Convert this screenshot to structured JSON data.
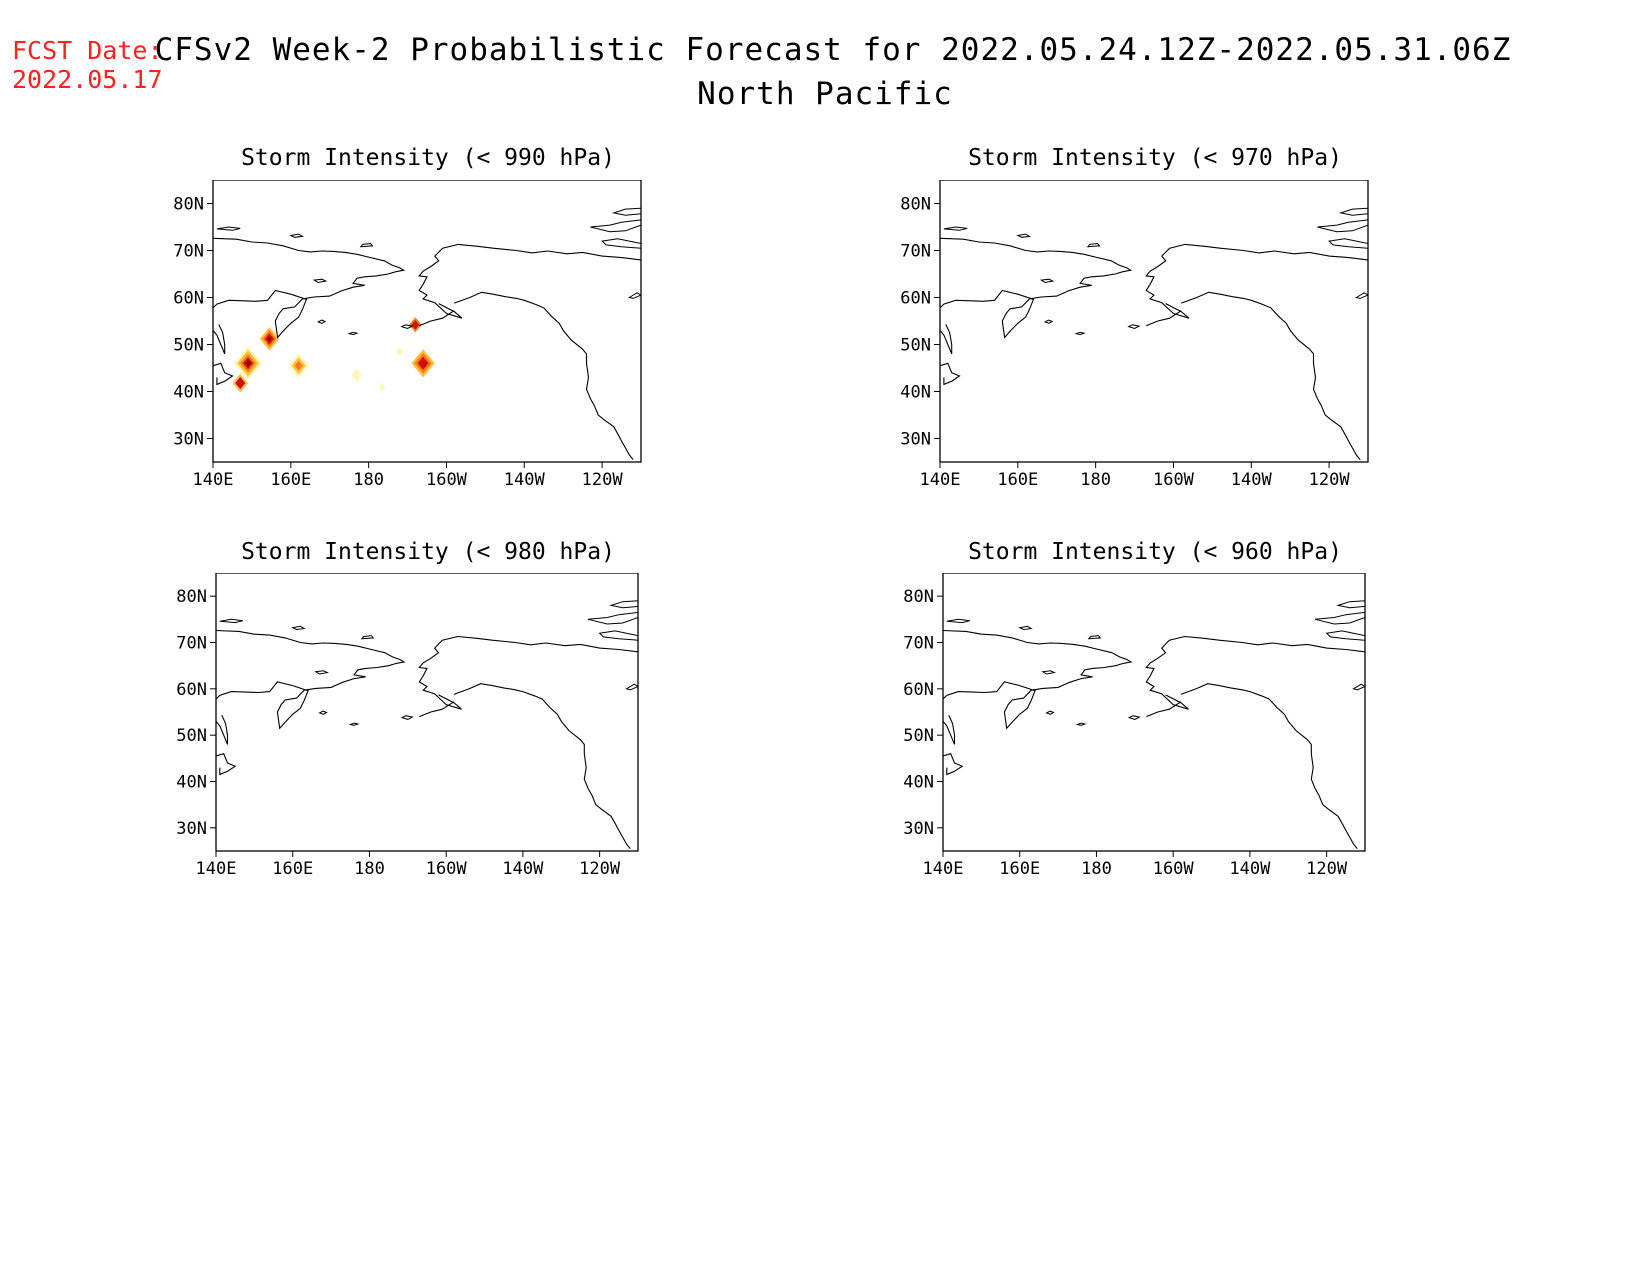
{
  "header": {
    "fcst_label": "FCST Date:",
    "fcst_date": "2022.05.17",
    "title_line1": "CFSv2 Week-2 Probabilistic Forecast for 2022.05.24.12Z-2022.05.31.06Z",
    "title_line2": "North Pacific"
  },
  "map": {
    "lon_ticks": [
      "140E",
      "160E",
      "180",
      "160W",
      "140W",
      "120W"
    ],
    "lat_ticks": [
      "80N",
      "70N",
      "60N",
      "50N",
      "40N",
      "30N"
    ],
    "lon_range": [
      140,
      250
    ],
    "lat_range": [
      25,
      85
    ]
  },
  "panels": [
    {
      "title": "Storm Intensity (< 990 hPa)",
      "threshold_hpa": 990,
      "has_probability_shading": true
    },
    {
      "title": "Storm Intensity (< 970 hPa)",
      "threshold_hpa": 970,
      "has_probability_shading": false
    },
    {
      "title": "Storm Intensity (< 980 hPa)",
      "threshold_hpa": 980,
      "has_probability_shading": false
    },
    {
      "title": "Storm Intensity (< 960 hPa)",
      "threshold_hpa": 960,
      "has_probability_shading": false
    }
  ],
  "shading_colors": {
    "low": "#fff6b0",
    "mid": "#ffc040",
    "high": "#ff7a10",
    "very_high": "#d01010",
    "peak": "#800000"
  }
}
